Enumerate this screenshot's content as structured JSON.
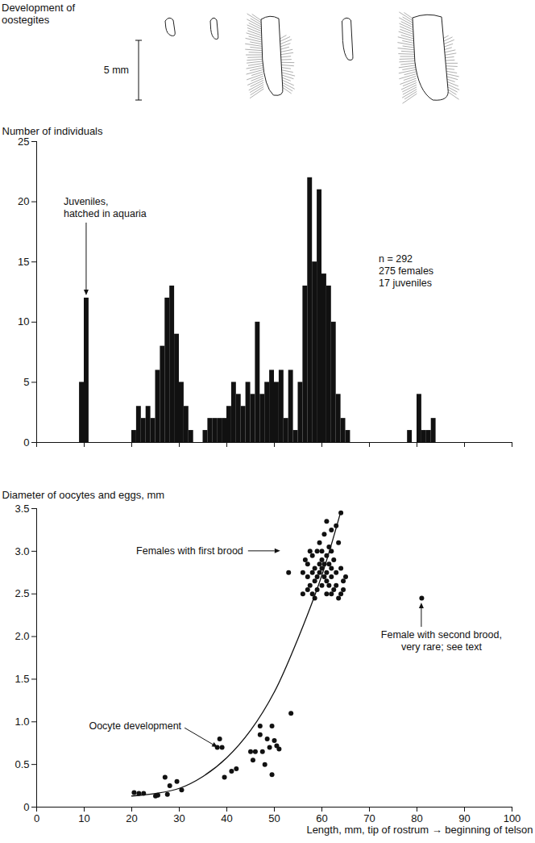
{
  "chart_data": [
    {
      "type": "diagram",
      "title": [
        "Development of",
        "oostegites"
      ],
      "scale_label": "5 mm"
    },
    {
      "type": "histogram",
      "y_label": "Number of individuals",
      "bins": [
        9,
        10,
        11,
        12,
        13,
        14,
        15,
        16,
        17,
        18,
        19,
        20,
        21,
        22,
        23,
        24,
        25,
        26,
        27,
        28,
        29,
        30,
        31,
        32,
        33,
        34,
        35,
        36,
        37,
        38,
        39,
        40,
        41,
        42,
        43,
        44,
        45,
        46,
        47,
        48,
        49,
        50,
        51,
        52,
        53,
        54,
        55,
        56,
        57,
        58,
        59,
        60,
        61,
        62,
        63,
        64,
        65,
        66,
        67,
        68,
        69,
        70,
        71,
        72,
        73,
        74,
        75,
        76,
        77,
        78,
        79,
        80,
        81,
        82,
        83,
        84
      ],
      "values": [
        5,
        12,
        0,
        0,
        0,
        0,
        0,
        0,
        0,
        0,
        0,
        1,
        3,
        2,
        3,
        2,
        6,
        8,
        12,
        13,
        9,
        5,
        3,
        1,
        0,
        0,
        1,
        2,
        2,
        2,
        2,
        3,
        5,
        4,
        3,
        5,
        4,
        10,
        4,
        5,
        6,
        5,
        6,
        2,
        6,
        1,
        5,
        13,
        22,
        15,
        21,
        14,
        13,
        10,
        4,
        2,
        1,
        0,
        0,
        0,
        0,
        0,
        0,
        0,
        0,
        0,
        0,
        0,
        0,
        1,
        0,
        4,
        1,
        1,
        2
      ],
      "color": "#111111",
      "xlim": [
        0,
        100
      ],
      "xticks": [
        0,
        10,
        20,
        30,
        40,
        50,
        60,
        70,
        80,
        90,
        100
      ],
      "ylim": [
        0,
        25
      ],
      "yticks": [
        0,
        5,
        10,
        15,
        20,
        25
      ],
      "tick_labels": "y",
      "annotations": [
        {
          "text": [
            "Juveniles,",
            "hatched in aquaria"
          ],
          "points_to": [
            10.5,
            12
          ]
        },
        {
          "text": [
            "n = 292",
            "275 females",
            "17 juveniles"
          ]
        }
      ]
    },
    {
      "type": "scatter",
      "y_label": "Diameter of oocytes and eggs, mm",
      "x_label": "Length, mm, tip of rostrum → beginning of telson",
      "x": [
        20.5,
        21.5,
        22.5,
        25,
        25.5,
        27,
        27.5,
        28,
        29.5,
        30.5,
        38,
        38.5,
        39,
        39.5,
        41,
        42,
        45,
        45.5,
        46,
        47,
        47,
        47.5,
        48,
        48.5,
        49,
        49.5,
        49.5,
        50,
        50.5,
        51,
        53.5,
        53,
        56,
        56.5,
        57,
        57,
        57.5,
        57.5,
        58,
        58,
        58,
        58.5,
        58.5,
        59,
        59,
        59,
        59.5,
        59.5,
        59.5,
        60,
        60,
        60,
        60,
        60.5,
        60.5,
        60.5,
        61,
        61,
        61,
        61,
        61.5,
        61.5,
        61.5,
        62,
        62,
        62,
        62,
        62.5,
        62.5,
        63,
        63,
        63,
        63.5,
        63.5,
        64,
        64,
        64,
        64.5,
        64.5,
        65,
        62,
        61,
        57,
        56,
        58.5,
        81
      ],
      "values": [
        0.17,
        0.16,
        0.16,
        0.13,
        0.14,
        0.35,
        0.15,
        0.25,
        0.3,
        0.2,
        0.7,
        0.8,
        0.7,
        0.35,
        0.42,
        0.45,
        0.65,
        0.55,
        0.65,
        0.85,
        0.95,
        0.65,
        0.5,
        0.8,
        0.7,
        0.95,
        0.38,
        0.78,
        0.72,
        0.68,
        1.1,
        2.75,
        2.75,
        2.9,
        2.7,
        2.85,
        2.6,
        3.0,
        2.75,
        2.5,
        2.95,
        2.8,
        2.65,
        3.0,
        2.7,
        2.55,
        2.85,
        3.1,
        2.75,
        2.8,
        2.6,
        3.0,
        2.9,
        2.7,
        2.85,
        3.2,
        2.75,
        2.5,
        2.95,
        2.65,
        2.85,
        3.05,
        2.6,
        2.8,
        2.7,
        3.0,
        2.5,
        2.9,
        2.55,
        2.75,
        3.3,
        2.6,
        2.45,
        3.1,
        2.8,
        2.5,
        3.45,
        2.65,
        2.55,
        2.7,
        3.25,
        3.35,
        2.55,
        2.5,
        2.45,
        2.45
      ],
      "color": "#111111",
      "marker": "circle",
      "curve": {
        "x": [
          20,
          25,
          30,
          35,
          40,
          45,
          50,
          55,
          60,
          64
        ],
        "values": [
          0.13,
          0.16,
          0.22,
          0.36,
          0.58,
          0.9,
          1.35,
          1.98,
          2.72,
          3.47
        ],
        "color": "#111111",
        "line_style": "solid"
      },
      "xlim": [
        0,
        100
      ],
      "xticks": [
        0,
        10,
        20,
        30,
        40,
        50,
        60,
        70,
        80,
        90,
        100
      ],
      "ylim": [
        0,
        3.5
      ],
      "yticks": [
        0,
        0.5,
        {
          "value": 1,
          "label": "1.0"
        },
        1.5,
        {
          "value": 2,
          "label": "2.0"
        },
        2.5,
        {
          "value": 3,
          "label": "3.0"
        },
        3.5
      ],
      "annotations": [
        {
          "text": [
            "Females with first brood"
          ],
          "points_to": [
            52,
            3.0
          ]
        },
        {
          "text": [
            "Oocyte development"
          ],
          "points_to": [
            39,
            0.66
          ]
        },
        {
          "text": [
            "Female with second brood,",
            "very rare; see text"
          ],
          "points_to": [
            81,
            2.45
          ]
        }
      ]
    }
  ]
}
